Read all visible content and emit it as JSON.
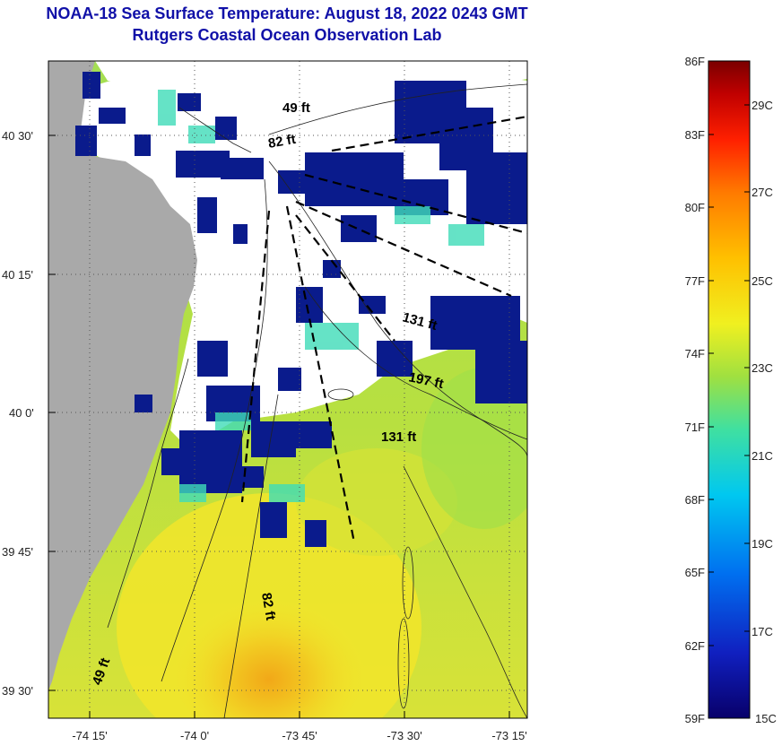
{
  "header": {
    "title_line1": "NOAA-18 Sea Surface Temperature:  August 18, 2022 0243 GMT",
    "title_line2": "Rutgers Coastal Ocean Observation Lab"
  },
  "map": {
    "lat_ticks": [
      "40 30'",
      "40 15'",
      "40 0'",
      "39 45'",
      "39 30'"
    ],
    "lon_ticks": [
      "-74 15'",
      "-74 0'",
      "-73 45'",
      "-73 30'",
      "-73 15'"
    ],
    "depth_labels": [
      "49 ft",
      "82 ft",
      "131 ft",
      "197 ft",
      "131 ft",
      "82 ft",
      "49 ft"
    ]
  },
  "colorbar": {
    "fahrenheit": [
      "86F",
      "83F",
      "80F",
      "77F",
      "74F",
      "71F",
      "68F",
      "65F",
      "62F",
      "59F"
    ],
    "celsius": [
      "29C",
      "27C",
      "25C",
      "23C",
      "21C",
      "19C",
      "17C",
      "15C"
    ],
    "colors": [
      "#7a0000",
      "#c00000",
      "#ff2000",
      "#ff7a00",
      "#ffc000",
      "#f0f020",
      "#a0e040",
      "#40e0a0",
      "#00c8f0",
      "#0070f0",
      "#1020c0",
      "#08006a"
    ]
  },
  "colors": {
    "land": "#a9a9a9",
    "cloud": "#ffffff",
    "water_green": "#9ee04a",
    "water_yellow": "#f2e52a",
    "water_orange": "#f2b020",
    "water_cyan": "#3fdcb8",
    "cold_blue": "#0a1b8c"
  }
}
